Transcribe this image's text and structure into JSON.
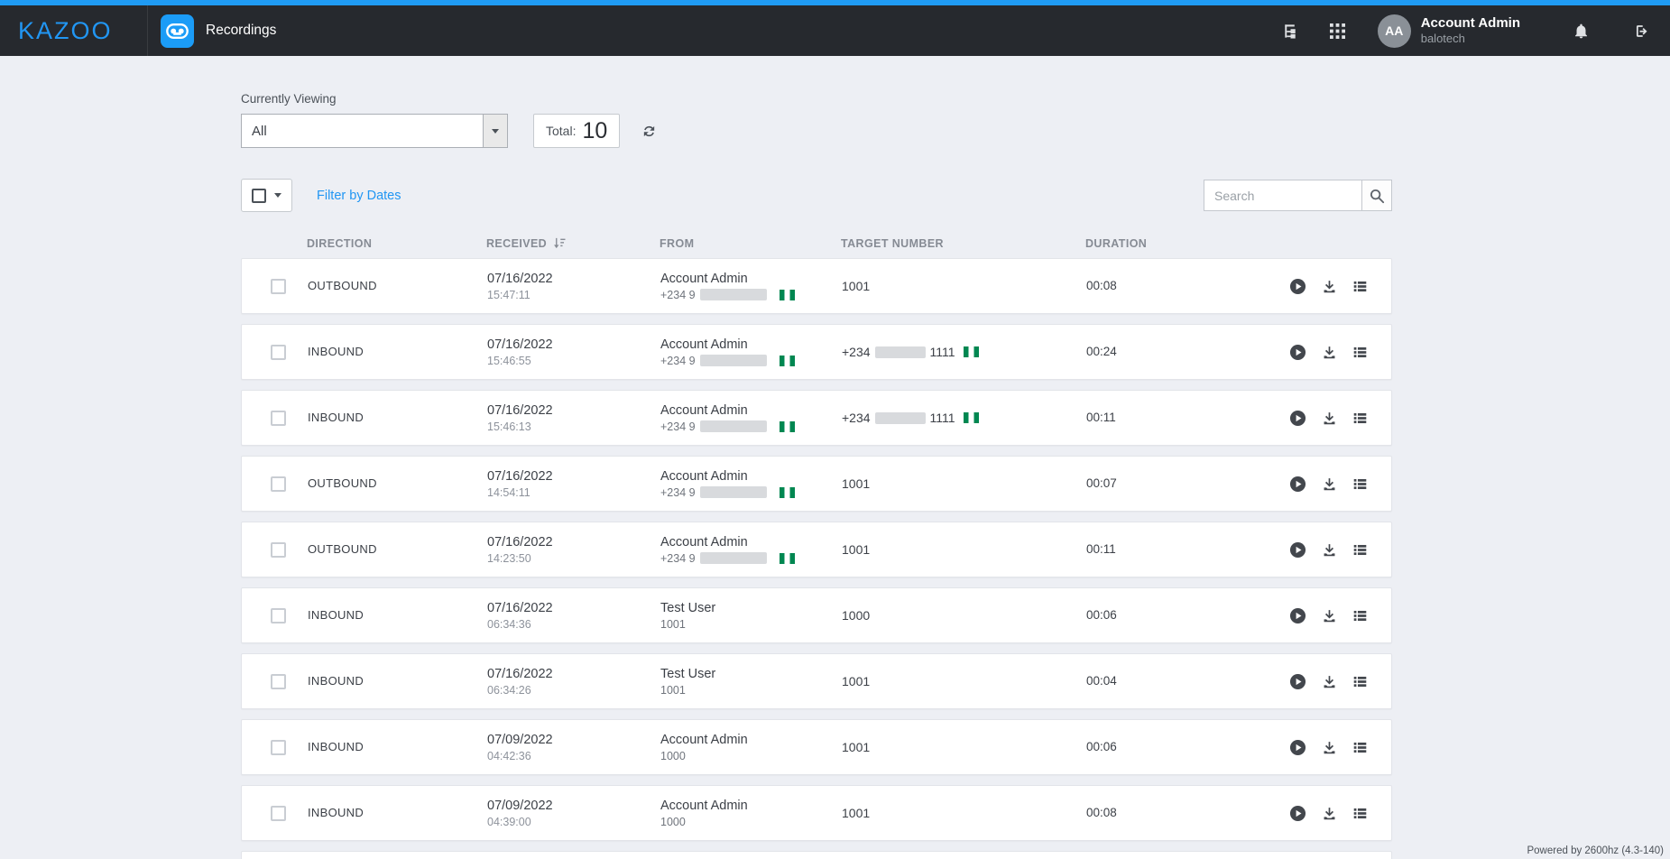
{
  "header": {
    "logo_text": "KAZOO",
    "app_title": "Recordings",
    "user_name": "Account Admin",
    "user_account": "balotech",
    "user_initials": "AA"
  },
  "toolbar": {
    "currently_viewing_label": "Currently Viewing",
    "view_selected": "All",
    "total_label": "Total:",
    "total_value": "10",
    "filter_by_dates": "Filter by Dates",
    "search_placeholder": "Search"
  },
  "table": {
    "headers": {
      "direction": "DIRECTION",
      "received": "RECEIVED",
      "from": "FROM",
      "target": "TARGET NUMBER",
      "duration": "DURATION"
    },
    "rows": [
      {
        "direction": "OUTBOUND",
        "date": "07/16/2022",
        "time": "15:47:11",
        "from_name": "Account Admin",
        "from_number_prefix": "+234 9",
        "from_redacted": true,
        "from_flag": true,
        "target_text": "1001",
        "duration": "00:08"
      },
      {
        "direction": "INBOUND",
        "date": "07/16/2022",
        "time": "15:46:55",
        "from_name": "Account Admin",
        "from_number_prefix": "+234 9",
        "from_redacted": true,
        "from_flag": true,
        "target_prefix": "+234",
        "target_redacted": true,
        "target_suffix": "1111",
        "target_flag": true,
        "duration": "00:24"
      },
      {
        "direction": "INBOUND",
        "date": "07/16/2022",
        "time": "15:46:13",
        "from_name": "Account Admin",
        "from_number_prefix": "+234 9",
        "from_redacted": true,
        "from_flag": true,
        "target_prefix": "+234",
        "target_redacted": true,
        "target_suffix": "1111",
        "target_flag": true,
        "duration": "00:11"
      },
      {
        "direction": "OUTBOUND",
        "date": "07/16/2022",
        "time": "14:54:11",
        "from_name": "Account Admin",
        "from_number_prefix": "+234 9",
        "from_redacted": true,
        "from_flag": true,
        "target_text": "1001",
        "duration": "00:07"
      },
      {
        "direction": "OUTBOUND",
        "date": "07/16/2022",
        "time": "14:23:50",
        "from_name": "Account Admin",
        "from_number_prefix": "+234 9",
        "from_redacted": true,
        "from_flag": true,
        "target_text": "1001",
        "duration": "00:11"
      },
      {
        "direction": "INBOUND",
        "date": "07/16/2022",
        "time": "06:34:36",
        "from_name": "Test User",
        "from_sub": "1001",
        "target_text": "1000",
        "duration": "00:06"
      },
      {
        "direction": "INBOUND",
        "date": "07/16/2022",
        "time": "06:34:26",
        "from_name": "Test User",
        "from_sub": "1001",
        "target_text": "1001",
        "duration": "00:04"
      },
      {
        "direction": "INBOUND",
        "date": "07/09/2022",
        "time": "04:42:36",
        "from_name": "Account Admin",
        "from_sub": "1000",
        "target_text": "1001",
        "duration": "00:06"
      },
      {
        "direction": "INBOUND",
        "date": "07/09/2022",
        "time": "04:39:00",
        "from_name": "Account Admin",
        "from_sub": "1000",
        "target_text": "1001",
        "duration": "00:08"
      }
    ]
  },
  "footer": {
    "powered_by": "Powered by 2600hz  (4.3-140)"
  },
  "colors": {
    "accent": "#2196f3",
    "header_bg": "#26292e",
    "flag_green": "#008751",
    "page_bg": "#edeff4"
  }
}
